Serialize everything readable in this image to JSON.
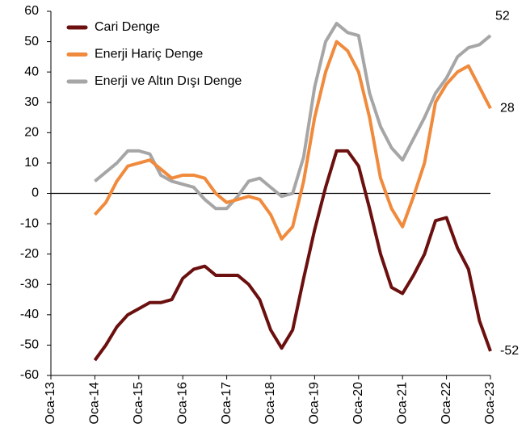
{
  "chart_data": {
    "type": "line",
    "categories": [
      "Oca-13",
      null,
      null,
      null,
      "Oca-14",
      null,
      null,
      null,
      "Oca-15",
      null,
      null,
      null,
      "Oca-16",
      null,
      null,
      null,
      "Oca-17",
      null,
      null,
      null,
      "Oca-18",
      null,
      null,
      null,
      "Oca-19",
      null,
      null,
      null,
      "Oca-20",
      null,
      null,
      null,
      "Oca-21",
      null,
      null,
      null,
      "Oca-22",
      null,
      null,
      null,
      "Oca-23"
    ],
    "series": [
      {
        "name": "Cari Denge",
        "color": "#6b0f0f",
        "end_label": "-52",
        "values": [
          null,
          null,
          null,
          null,
          -55,
          -50,
          -44,
          -40,
          -38,
          -36,
          -36,
          -35,
          -28,
          -25,
          -24,
          -27,
          -27,
          -27,
          -30,
          -35,
          -45,
          -51,
          -45,
          -28,
          -12,
          2,
          14,
          14,
          9,
          -5,
          -20,
          -31,
          -33,
          -27,
          -20,
          -9,
          -8,
          -18,
          -25,
          -42,
          -52
        ]
      },
      {
        "name": "Enerji Hariç Denge",
        "color": "#f08a3c",
        "end_label": "28",
        "values": [
          null,
          null,
          null,
          null,
          -7,
          -3,
          4,
          9,
          10,
          11,
          8,
          5,
          6,
          6,
          5,
          0,
          -3,
          -2,
          -1,
          -2,
          -7,
          -15,
          -11,
          4,
          25,
          40,
          50,
          47,
          40,
          25,
          5,
          -5,
          -11,
          -1,
          10,
          30,
          36,
          40,
          42,
          35,
          28
        ]
      },
      {
        "name": "Enerji ve Altın Dışı Denge",
        "color": "#a6a6a6",
        "end_label": "52",
        "values": [
          null,
          null,
          null,
          null,
          4,
          7,
          10,
          14,
          14,
          13,
          6,
          4,
          3,
          2,
          -2,
          -5,
          -5,
          -1,
          4,
          5,
          2,
          -1,
          0,
          12,
          35,
          50,
          56,
          53,
          52,
          33,
          22,
          15,
          11,
          18,
          25,
          33,
          38,
          45,
          48,
          49,
          52
        ]
      }
    ],
    "ylim": [
      -60,
      60
    ],
    "yticks": [
      -60,
      -50,
      -40,
      -30,
      -20,
      -10,
      0,
      10,
      20,
      30,
      40,
      50,
      60
    ],
    "grid": false,
    "legend": "top-left"
  }
}
